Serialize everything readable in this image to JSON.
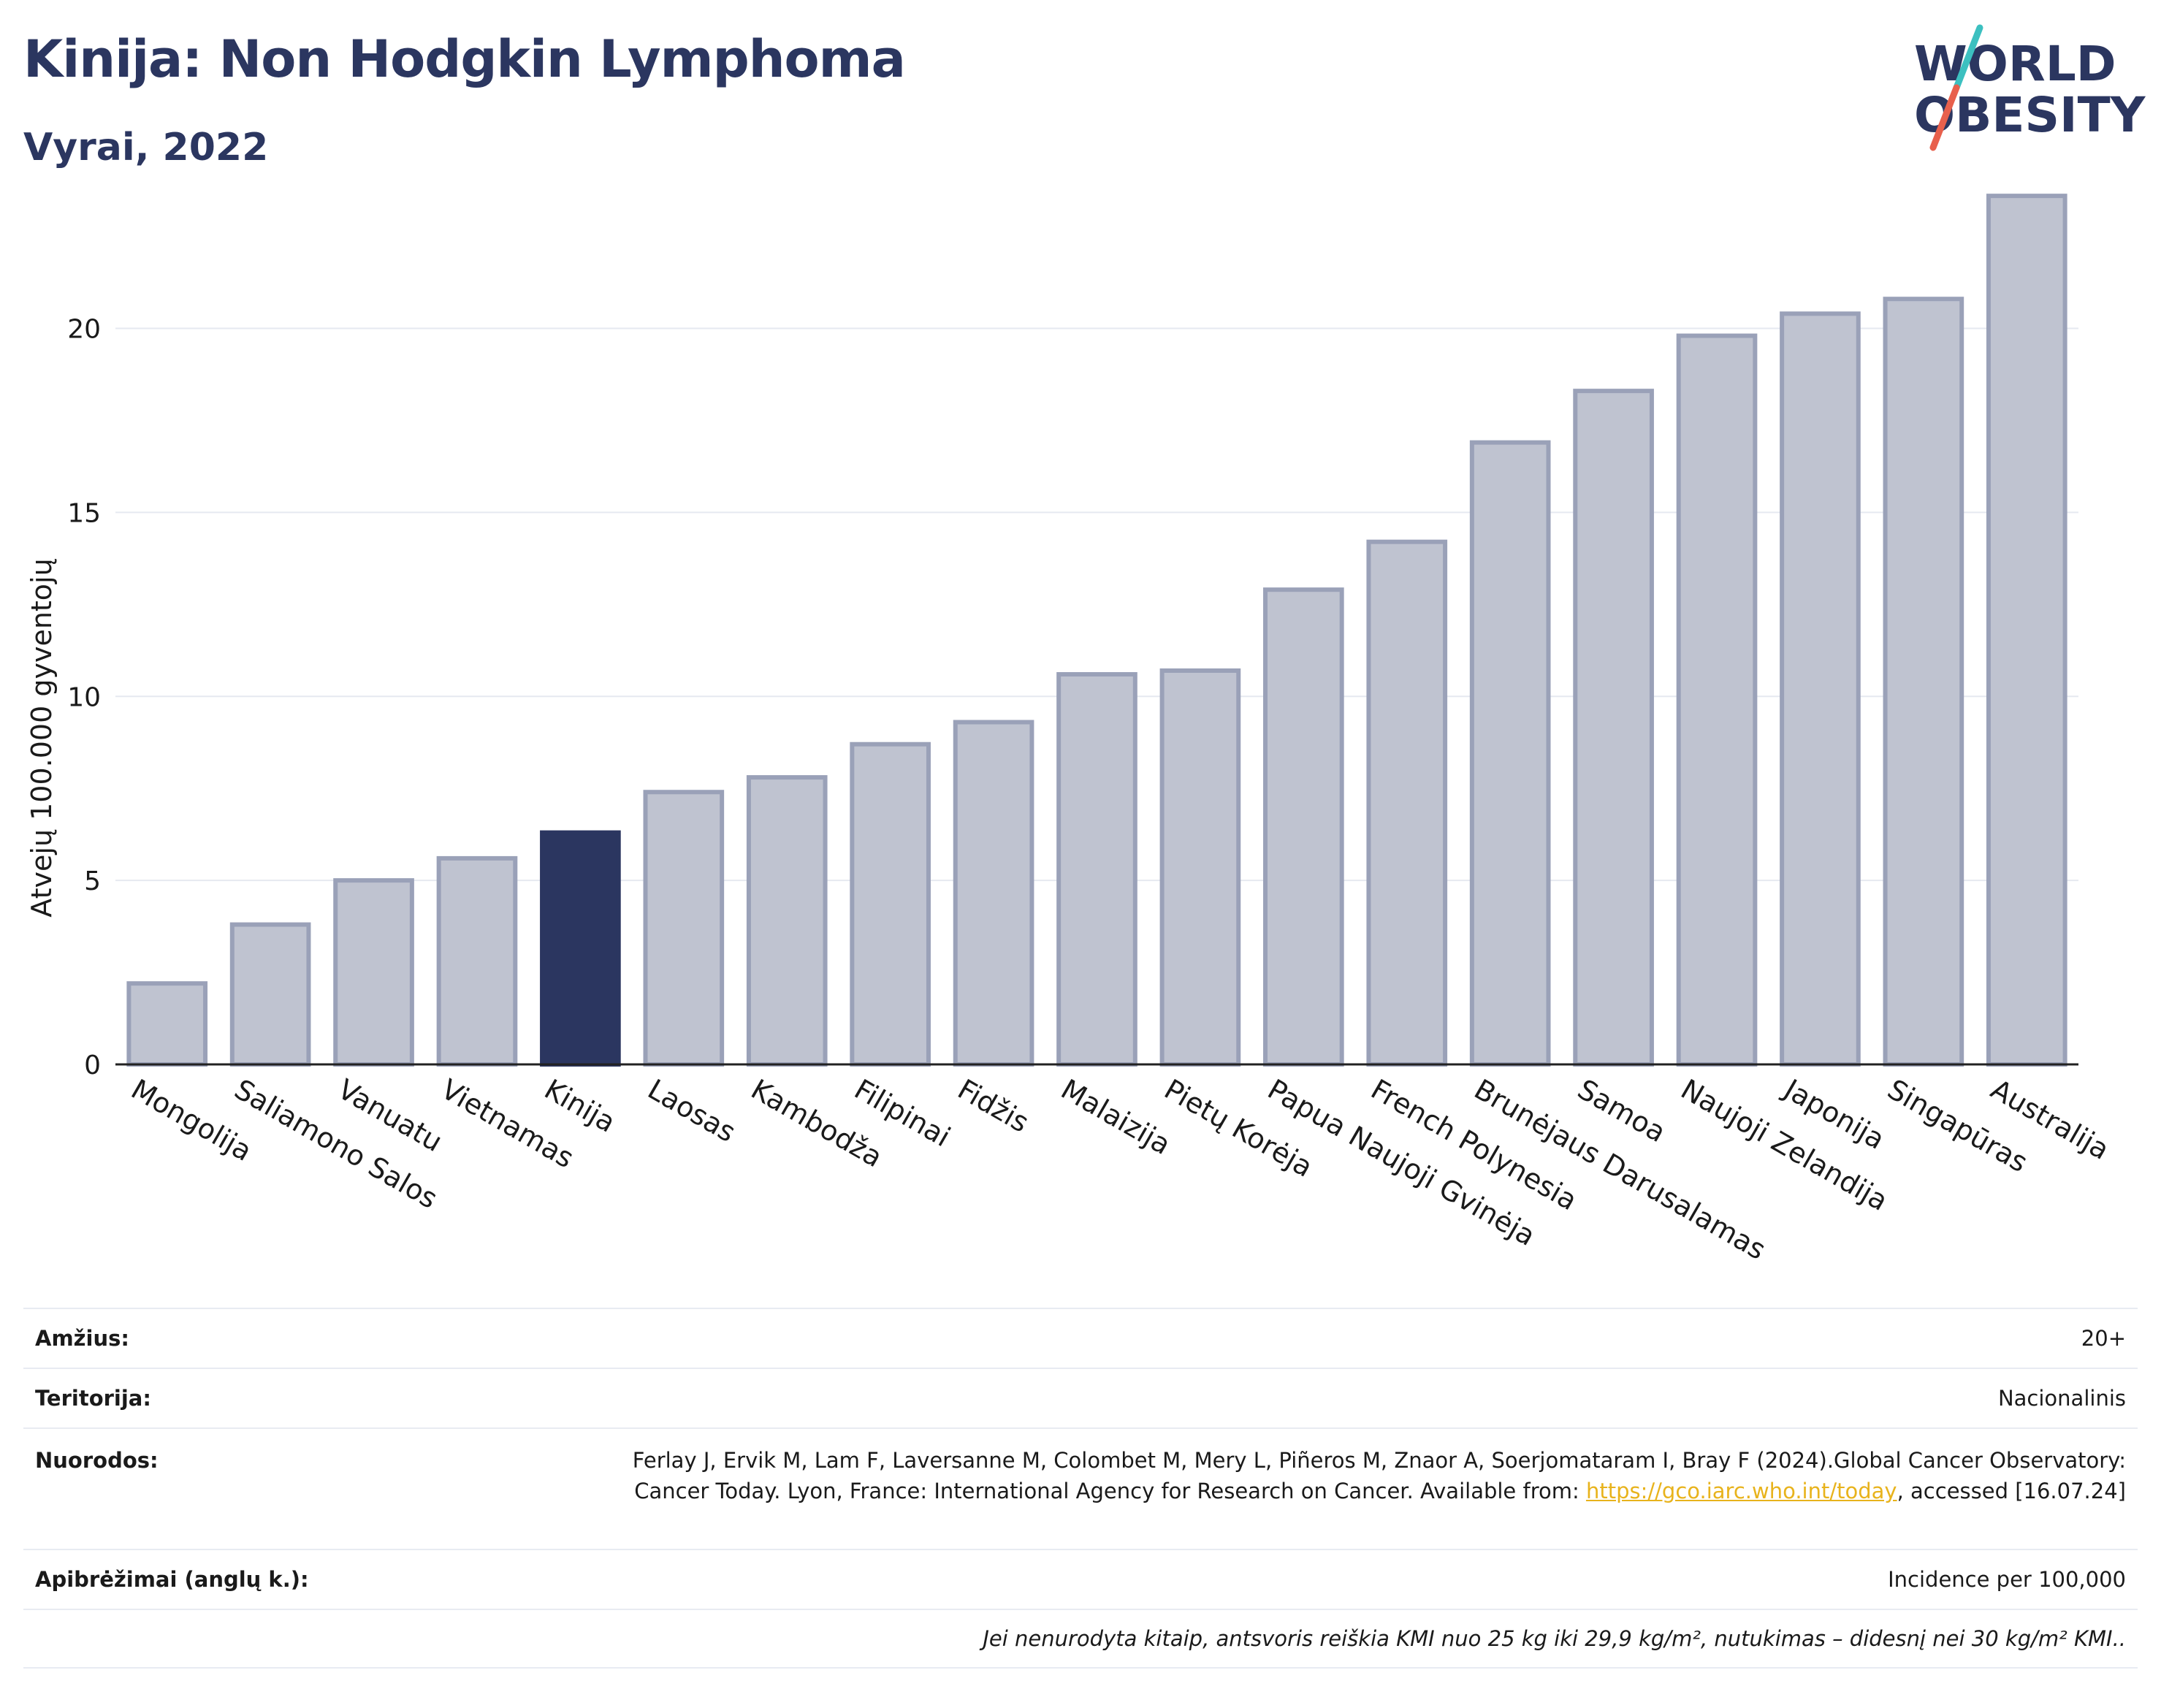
{
  "header": {
    "title": "Kinija: Non Hodgkin Lymphoma",
    "subtitle": "Vyrai, 2022"
  },
  "logo": {
    "line1": "WORLD",
    "line2": "OBESITY",
    "colors": {
      "text": "#2b3660",
      "slash_teal": "#3cc0c0",
      "slash_red": "#e8604c"
    }
  },
  "chart_data": {
    "type": "bar",
    "ylabel": "Atvejų 100.000 gyventojų",
    "ylim": [
      0,
      24
    ],
    "yticks": [
      0,
      5,
      10,
      15,
      20
    ],
    "grid": true,
    "highlight": "Kinija",
    "colors": {
      "bar": "#bfc3d0",
      "bar_edge": "#9aa1b8",
      "highlight": "#2b3660"
    },
    "categories": [
      "Mongolija",
      "Saliamono Salos",
      "Vanuatu",
      "Vietnamas",
      "Kinija",
      "Laosas",
      "Kambodža",
      "Filipinai",
      "Fidžis",
      "Malaizija",
      "Pietų Korėja",
      "Papua Naujoji Gvinėja",
      "French Polynesia",
      "Brunėjaus Darusalamas",
      "Samoa",
      "Naujoji Zelandija",
      "Japonija",
      "Singapūras",
      "Australija"
    ],
    "values": [
      2.2,
      3.8,
      5.0,
      5.6,
      6.3,
      7.4,
      7.8,
      8.7,
      9.3,
      10.6,
      10.7,
      12.9,
      14.2,
      16.9,
      18.3,
      19.8,
      20.4,
      20.8,
      23.6
    ]
  },
  "info": {
    "age_label": "Amžius:",
    "age_value": "20+",
    "territory_label": "Teritorija:",
    "territory_value": "Nacionalinis",
    "refs_label": "Nuorodos:",
    "refs_text": "Ferlay J, Ervik M, Lam F, Laversanne M, Colombet M, Mery L, Piñeros M, Znaor A, Soerjomataram I, Bray F (2024).Global Cancer Observatory: Cancer Today. Lyon, France: International Agency for Research on Cancer. Available from: ",
    "refs_link": "https://gco.iarc.who.int/today",
    "refs_suffix": ", accessed [16.07.24]",
    "defs_label": "Apibrėžimai (anglų k.):",
    "defs_value": "Incidence per 100,000",
    "note": "Jei nenurodyta kitaip, antsvoris reiškia KMI nuo 25 kg iki 29,9 kg/m², nutukimas – didesnį nei 30 kg/m² KMI.."
  }
}
